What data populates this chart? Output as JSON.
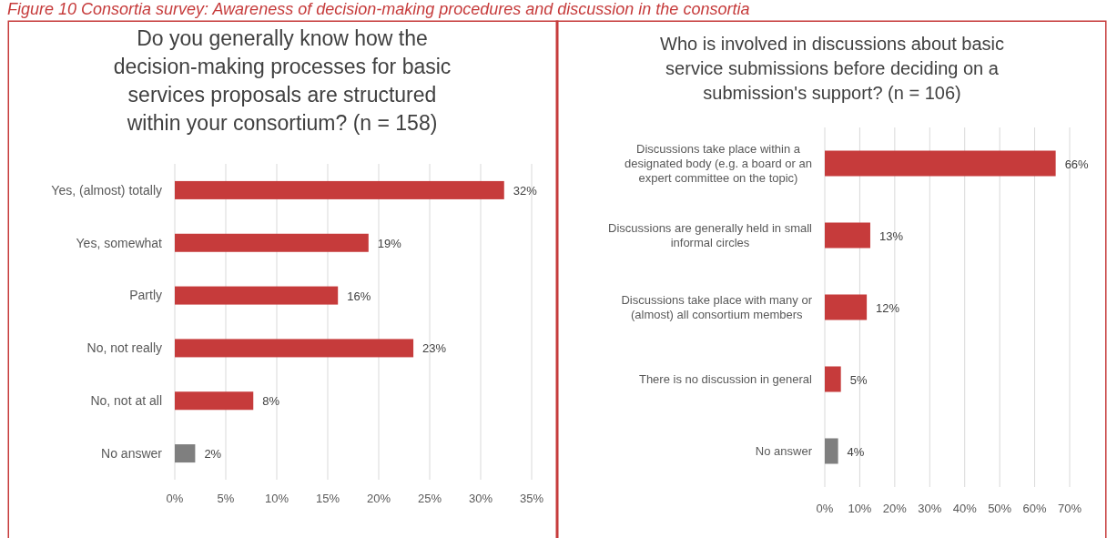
{
  "chart_data": [
    {
      "type": "bar",
      "orientation": "horizontal",
      "title": "Do you generally know how the decision-making processes for basic services proposals are structured within your consortium? (n = 158)",
      "annotations": [
        "Figure 10 Consortia survey: Awareness of decision-making procedures and discussion in the consortia"
      ],
      "categories": [
        "Yes, (almost) totally",
        "Yes, somewhat",
        "Partly",
        "No, not really",
        "No, not at all",
        "No answer"
      ],
      "values": [
        32.3,
        19,
        16,
        23.4,
        7.7,
        2
      ],
      "colors": [
        "#c63b3b",
        "#c63b3b",
        "#c63b3b",
        "#c63b3b",
        "#c63b3b",
        "#7f7f7f"
      ],
      "value_labels": [
        "32%",
        "19%",
        "16%",
        "23%",
        "8%",
        "2%"
      ],
      "xlim": [
        0,
        35
      ],
      "xticks": [
        {
          "value": 0,
          "label": "0%"
        },
        {
          "value": 5,
          "label": "5%"
        },
        {
          "value": 10,
          "label": "10%"
        },
        {
          "value": 15,
          "label": "15%"
        },
        {
          "value": 20,
          "label": "20%"
        },
        {
          "value": 25,
          "label": "25%"
        },
        {
          "value": 30,
          "label": "30%"
        },
        {
          "value": 35,
          "label": "35%"
        }
      ],
      "grid": "x"
    },
    {
      "type": "bar",
      "orientation": "horizontal",
      "title": "Who is involved in discussions about basic service submissions before deciding on a submission's support? (n = 106)",
      "categories": [
        "Discussions take place within a designated body (e.g. a board or an expert committee on the topic)",
        "Discussions are generally held in small informal circles",
        "Discussions take place with many or (almost) all consortium members",
        "There is no discussion in general",
        "No answer"
      ],
      "values": [
        66,
        13,
        12,
        4.6,
        3.8
      ],
      "colors": [
        "#c63b3b",
        "#c63b3b",
        "#c63b3b",
        "#c63b3b",
        "#7f7f7f"
      ],
      "value_labels": [
        "66%",
        "13%",
        "12%",
        "5%",
        "4%"
      ],
      "xlim": [
        0,
        70
      ],
      "xticks": [
        {
          "value": 0,
          "label": "0%"
        },
        {
          "value": 10,
          "label": "10%"
        },
        {
          "value": 20,
          "label": "20%"
        },
        {
          "value": 30,
          "label": "30%"
        },
        {
          "value": 40,
          "label": "40%"
        },
        {
          "value": 50,
          "label": "50%"
        },
        {
          "value": 60,
          "label": "60%"
        },
        {
          "value": 70,
          "label": "70%"
        }
      ],
      "grid": "x"
    }
  ]
}
